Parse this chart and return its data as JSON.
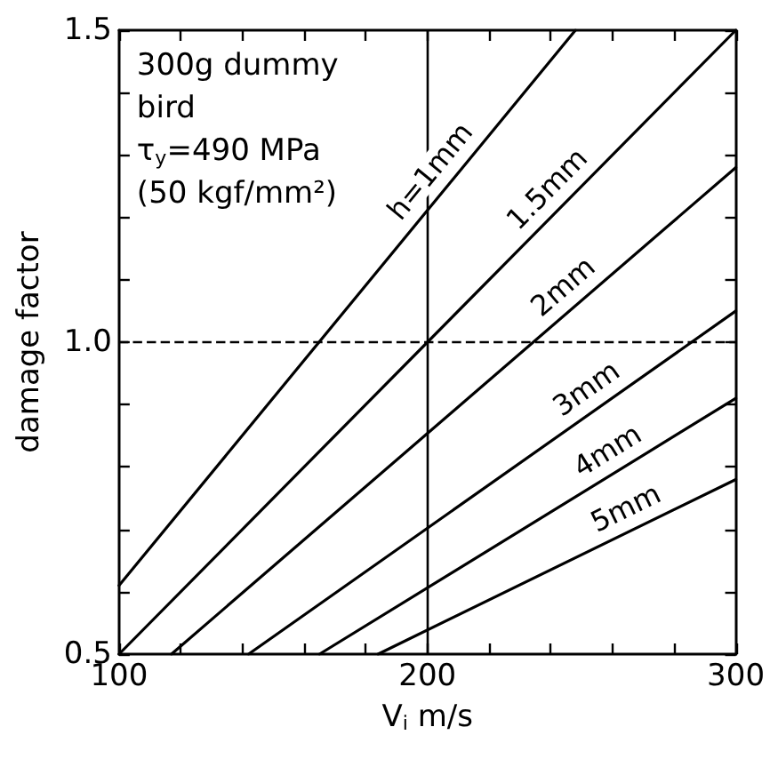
{
  "chart_data": {
    "type": "line",
    "xlabel": "V$_{i}$ m/s",
    "ylabel": "damage factor",
    "xlim": [
      100,
      300
    ],
    "ylim": [
      0.5,
      1.5
    ],
    "xticks": [
      100,
      {
        "value": 120,
        "label": null
      },
      {
        "value": 140,
        "label": null
      },
      {
        "value": 160,
        "label": null
      },
      {
        "value": 180,
        "label": null
      },
      200,
      {
        "value": 220,
        "label": null
      },
      {
        "value": 240,
        "label": null
      },
      {
        "value": 260,
        "label": null
      },
      {
        "value": 280,
        "label": null
      },
      300
    ],
    "yticks": [
      0.5,
      {
        "value": 0.6,
        "label": null
      },
      {
        "value": 0.7,
        "label": null
      },
      {
        "value": 0.8,
        "label": null
      },
      {
        "value": 0.9,
        "label": null
      },
      {
        "value": 1.0,
        "label": "1.0"
      },
      {
        "value": 1.1,
        "label": null
      },
      {
        "value": 1.2,
        "label": null
      },
      {
        "value": 1.3,
        "label": null
      },
      {
        "value": 1.4,
        "label": null
      },
      1.5
    ],
    "series": [
      {
        "name": "h=1mm",
        "color": "#000000",
        "x": [
          100,
          248
        ],
        "values": [
          0.61,
          1.5
        ]
      },
      {
        "name": "1.5mm",
        "color": "#000000",
        "x": [
          100,
          300
        ],
        "values": [
          0.5,
          1.5
        ]
      },
      {
        "name": "2mm",
        "color": "#000000",
        "x": [
          117,
          300
        ],
        "values": [
          0.5,
          1.28
        ]
      },
      {
        "name": "3mm",
        "color": "#000000",
        "x": [
          142,
          300
        ],
        "values": [
          0.5,
          1.05
        ]
      },
      {
        "name": "4mm",
        "color": "#000000",
        "x": [
          165,
          300
        ],
        "values": [
          0.5,
          0.91
        ]
      },
      {
        "name": "5mm",
        "color": "#000000",
        "x": [
          184,
          300
        ],
        "values": [
          0.5,
          0.78
        ]
      }
    ],
    "ref_lines": [
      {
        "axis": "y",
        "value": 1.0,
        "line_style": "dashed",
        "color": "#000000"
      },
      {
        "axis": "x",
        "value": 200,
        "line_style": "solid",
        "color": "#000000"
      }
    ],
    "annotations": [
      "300g dummy",
      "bird",
      "τ$_{y}$=490 MPa",
      "(50 kgf/mm²)"
    ],
    "grid": false,
    "legend": false,
    "marker": "none",
    "line_style": "solid"
  }
}
